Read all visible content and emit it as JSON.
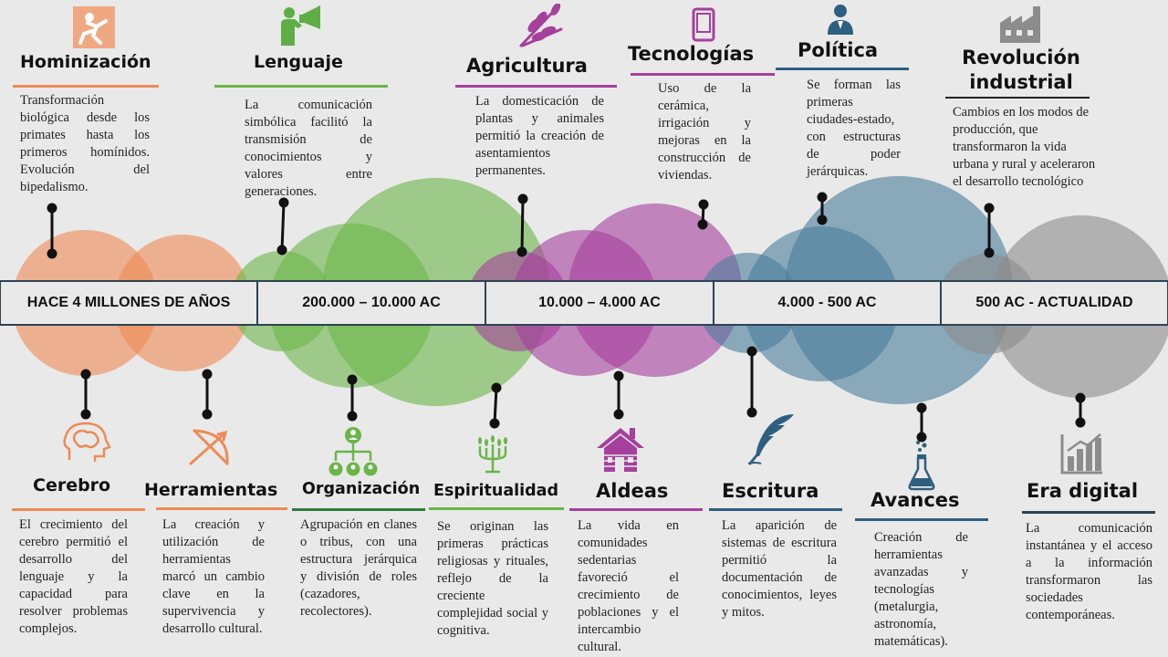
{
  "colors": {
    "orange": "#ee8a55",
    "green": "#6ab548",
    "purple": "#a5409c",
    "blue": "#4a7d9b",
    "gray": "#8c8c8c",
    "band_fill": "#e9e9e9",
    "band_stroke": "#2e4354"
  },
  "periods": [
    "HACE 4 MILLONES DE AÑOS",
    "200.000 – 10.000 AC",
    "10.000 – 4.000 AC",
    "4.000 - 500 AC",
    "500 AC - ACTUALIDAD"
  ],
  "top": [
    {
      "title": "Hominización",
      "text": "Transformación biológica desde los primates hasta los primeros homínidos. Evolución del bipedalismo.",
      "icon": "climbing-person-icon",
      "color": "#ee8a55"
    },
    {
      "title": "Lenguaje",
      "text": "La comunicación simbólica facilitó la transmisión de conocimientos y valores entre generaciones.",
      "icon": "megaphone-person-icon",
      "color": "#6ab548"
    },
    {
      "title": "Agricultura",
      "text": "La domesticación de plantas y animales permitió la creación de asentamientos permanentes.",
      "icon": "wheat-icon",
      "color": "#a5409c"
    },
    {
      "title": "Tecnologías",
      "text": "Uso de la cerámica, irrigación y mejoras en la construcción de viviendas.",
      "icon": "phone-icon",
      "color": "#a5409c"
    },
    {
      "title": "Política",
      "text": "Se forman las primeras ciudades-estado, con estructuras de poder jerárquicas.",
      "icon": "leader-icon",
      "color": "#2e5f80"
    },
    {
      "title": "Revolución industrial",
      "text": "Cambios en los modos de producción, que transformaron la vida urbana y rural y aceleraron el desarrollo tecnológico",
      "icon": "factory-icon",
      "color": "#8c8c8c"
    }
  ],
  "bottom": [
    {
      "title": "Cerebro",
      "text": "El crecimiento del cerebro permitió el desarrollo del lenguaje y la capacidad para resolver problemas complejos.",
      "icon": "brain-icon",
      "color": "#ee8a55"
    },
    {
      "title": "Herramientas",
      "text": "La creación y utilización de herramientas marcó un cambio clave en la supervivencia y desarrollo cultural.",
      "icon": "bow-arrow-icon",
      "color": "#ee8a55"
    },
    {
      "title": "Organización",
      "text": "Agrupación en clanes o tribus, con una estructura jerárquica y división de roles (cazadores, recolectores).",
      "icon": "org-chart-icon",
      "color": "#6ab548"
    },
    {
      "title": "Espiritualidad",
      "text": "Se originan las primeras prácticas religiosas y rituales, reflejo de la creciente complejidad social y cognitiva.",
      "icon": "candelabra-icon",
      "color": "#6ab548"
    },
    {
      "title": "Aldeas",
      "text": "La vida en comunidades sedentarias favoreció el crecimiento de poblaciones y el intercambio cultural.",
      "icon": "cabin-icon",
      "color": "#a5409c"
    },
    {
      "title": "Escritura",
      "text": "La aparición de sistemas de escritura permitió la documentación de conocimientos, leyes y mitos.",
      "icon": "quill-icon",
      "color": "#2e5f80"
    },
    {
      "title": "Avances",
      "text": "Creación de herramientas avanzadas y tecnologías (metalurgia, astronomía, matemáticas).",
      "icon": "flask-icon",
      "color": "#2e5f80"
    },
    {
      "title": "Era digital",
      "text": "La comunicación instantánea y el acceso a la información transformaron las sociedades contemporáneas.",
      "icon": "growth-chart-icon",
      "color": "#8c8c8c"
    }
  ]
}
